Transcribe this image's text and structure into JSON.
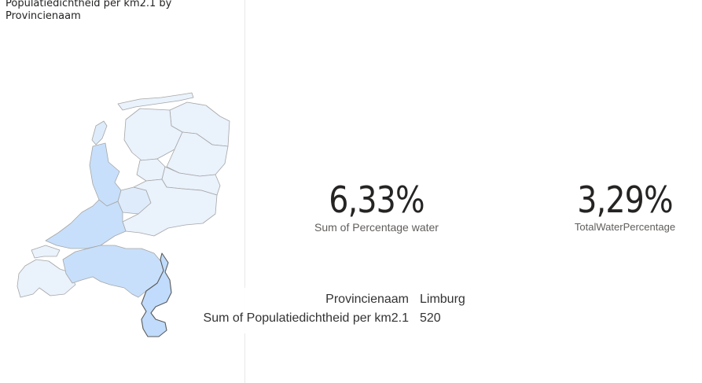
{
  "map_visual": {
    "title": "Populatiedichtheid per km2.1 by Provincienaam",
    "fill_colors": {
      "low": "#eaf2fc",
      "mid": "#deebfa",
      "high": "#c7dffa",
      "selected": "#c0dbfb"
    },
    "tooltip": {
      "rows": [
        {
          "key": "Provincienaam",
          "value": "Limburg"
        },
        {
          "key": "Sum of Populatiedichtheid per km2.1",
          "value": "520"
        }
      ]
    }
  },
  "cards": [
    {
      "value": "6,33%",
      "label": "Sum of Percentage water"
    },
    {
      "value": "3,29%",
      "label": "TotalWaterPercentage"
    }
  ]
}
